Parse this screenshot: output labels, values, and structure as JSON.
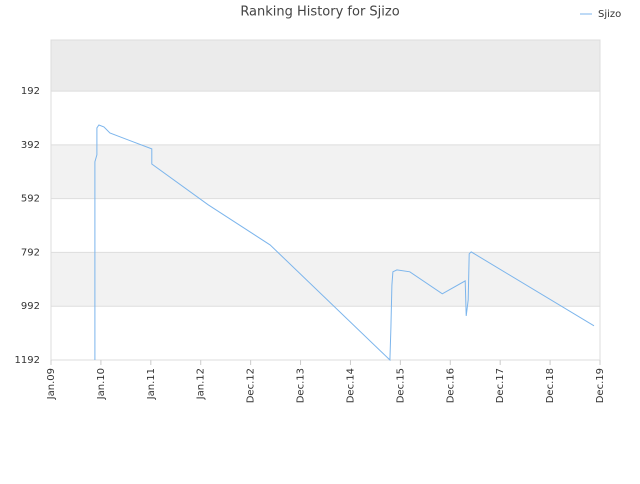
{
  "chart_data": {
    "type": "line",
    "title": "Ranking History for Sjizo",
    "series": [
      {
        "name": "Sjizo",
        "color": "#7cb5ec",
        "x": [
          0.88,
          0.88,
          0.92,
          0.92,
          0.96,
          1.06,
          1.18,
          2.02,
          2.02,
          3.15,
          4.39,
          6.79,
          6.81,
          6.83,
          6.85,
          6.93,
          7.19,
          7.84,
          8.3,
          8.32,
          8.36,
          8.38,
          8.42,
          10.88
        ],
        "values": [
          1192,
          455,
          429,
          329,
          318,
          325,
          348,
          407,
          463,
          615,
          764,
          1192,
          1073,
          913,
          864,
          857,
          864,
          946,
          898,
          1028,
          968,
          797,
          790,
          1065
        ]
      }
    ],
    "ylim": [
      1192,
      2
    ],
    "yticks": [
      192,
      392,
      592,
      792,
      992,
      1192
    ],
    "xlim": [
      0,
      11
    ],
    "xticks": [
      {
        "value": 0,
        "label": "Jan.09"
      },
      {
        "value": 1,
        "label": "Jan.10"
      },
      {
        "value": 2,
        "label": "Jan.11"
      },
      {
        "value": 3,
        "label": "Jan.12"
      },
      {
        "value": 4,
        "label": "Dec.12"
      },
      {
        "value": 5,
        "label": "Dec.13"
      },
      {
        "value": 6,
        "label": "Dec.14"
      },
      {
        "value": 7,
        "label": "Dec.15"
      },
      {
        "value": 8,
        "label": "Dec.16"
      },
      {
        "value": 9,
        "label": "Dec.17"
      },
      {
        "value": 10,
        "label": "Dec.18"
      },
      {
        "value": 11,
        "label": "Dec.19"
      }
    ],
    "grid": true,
    "legend": "top-right"
  }
}
